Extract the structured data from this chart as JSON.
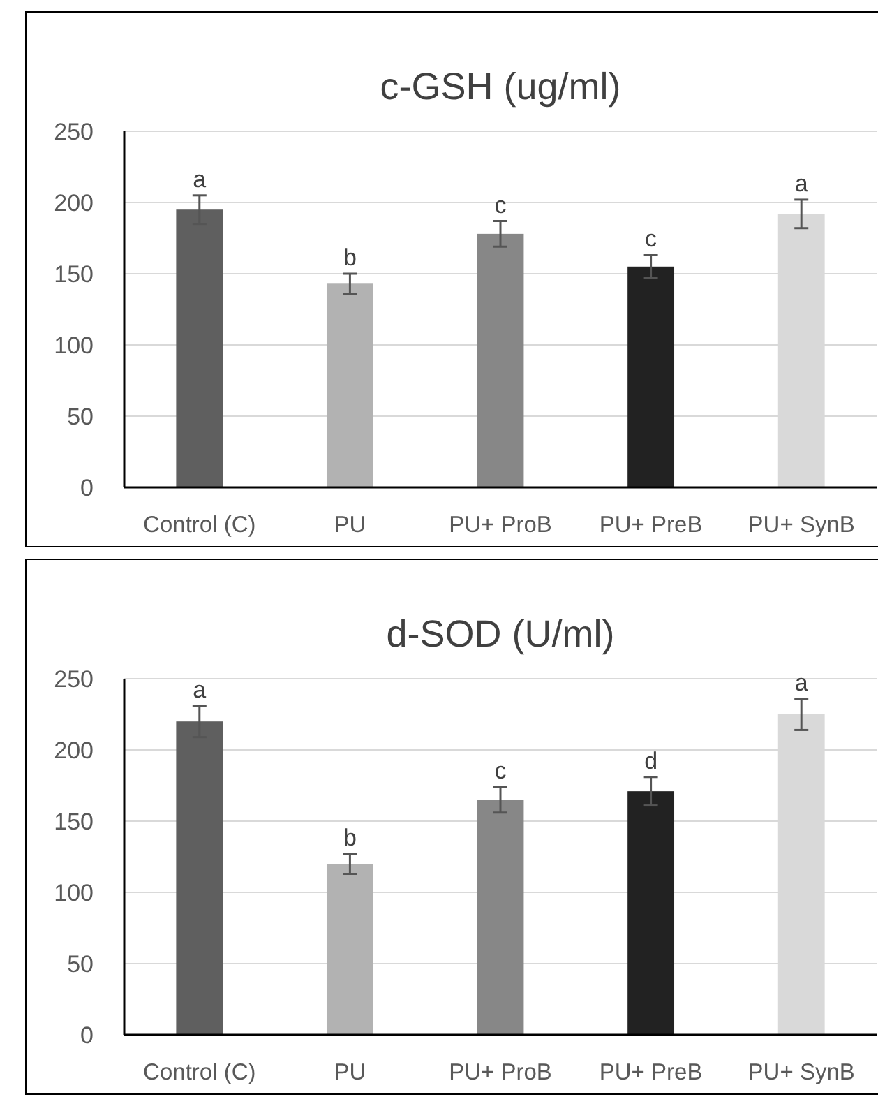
{
  "chart_data": [
    {
      "type": "bar",
      "title": "c-GSH (ug/ml)",
      "categories": [
        "Control (C)",
        "PU",
        "PU+ ProB",
        "PU+ PreB",
        "PU+ SynB"
      ],
      "values": [
        195,
        143,
        178,
        155,
        192
      ],
      "colors": [
        "#5f5f5f",
        "#b2b2b2",
        "#878787",
        "#222222",
        "#d9d9d9"
      ],
      "errors": [
        10,
        7,
        9,
        8,
        10
      ],
      "ylim": [
        0,
        250
      ],
      "yticks": [
        0,
        50,
        100,
        150,
        200,
        250
      ],
      "grid": "y",
      "annotations": [
        {
          "text": "a",
          "x": "Control (C)",
          "y": 205
        },
        {
          "text": "b",
          "x": "PU",
          "y": 150
        },
        {
          "text": "c",
          "x": "PU+ ProB",
          "y": 187
        },
        {
          "text": "c",
          "x": "PU+ PreB",
          "y": 163
        },
        {
          "text": "a",
          "x": "PU+ SynB",
          "y": 202
        }
      ]
    },
    {
      "type": "bar",
      "title": "d-SOD (U/ml)",
      "categories": [
        "Control (C)",
        "PU",
        "PU+ ProB",
        "PU+ PreB",
        "PU+ SynB"
      ],
      "values": [
        220,
        120,
        165,
        171,
        225
      ],
      "colors": [
        "#5f5f5f",
        "#b2b2b2",
        "#878787",
        "#222222",
        "#d9d9d9"
      ],
      "errors": [
        11,
        7,
        9,
        10,
        11
      ],
      "ylim": [
        0,
        250
      ],
      "yticks": [
        0,
        50,
        100,
        150,
        200,
        250
      ],
      "grid": "y",
      "annotations": [
        {
          "text": "a",
          "x": "Control (C)",
          "y": 231
        },
        {
          "text": "b",
          "x": "PU",
          "y": 127
        },
        {
          "text": "c",
          "x": "PU+ ProB",
          "y": 174
        },
        {
          "text": "d",
          "x": "PU+ PreB",
          "y": 181
        },
        {
          "text": "a",
          "x": "PU+ SynB",
          "y": 236
        }
      ]
    }
  ]
}
